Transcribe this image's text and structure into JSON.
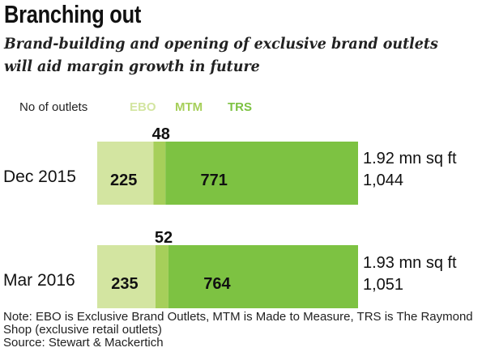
{
  "title": "Branching out",
  "subtitle": "Brand-building and opening of exclusive brand outlets will aid margin growth in future",
  "legend_title": "No of outlets",
  "colors": {
    "EBO": "#d3e5a1",
    "MTM": "#a6cf5a",
    "TRS": "#7dc242"
  },
  "chart_data": {
    "type": "bar",
    "orientation": "horizontal",
    "stacked": true,
    "categories": [
      "Dec 2015",
      "Mar 2016"
    ],
    "series": [
      {
        "name": "EBO",
        "values": [
          225,
          235
        ]
      },
      {
        "name": "MTM",
        "values": [
          48,
          52
        ]
      },
      {
        "name": "TRS",
        "values": [
          771,
          764
        ]
      }
    ],
    "totals": [
      "1,044",
      "1,051"
    ],
    "area": [
      "1.92 mn sq ft",
      "1.93 mn sq ft"
    ],
    "legend_position": "top",
    "grid": false
  },
  "note": "Note: EBO is Exclusive Brand Outlets, MTM is Made to Measure, TRS is The Raymond Shop (exclusive retail outlets)",
  "source": "Source: Stewart & Mackertich"
}
